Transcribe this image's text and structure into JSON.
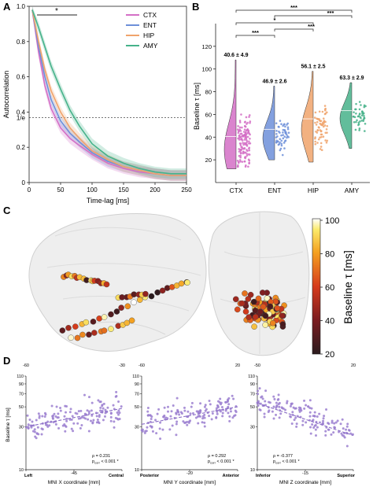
{
  "panels": {
    "A": {
      "letter": "A",
      "sig": "*"
    },
    "B": {
      "letter": "B"
    },
    "C": {
      "letter": "C"
    },
    "D": {
      "letter": "D"
    }
  },
  "colors": {
    "CTX": "#d46fc6",
    "ENT": "#6d8fd9",
    "HIP": "#f0a36b",
    "AMY": "#46b28a",
    "scatter": "#9b7fd0"
  },
  "chart_data": [
    {
      "id": "A",
      "type": "line",
      "xlabel": "Time-lag [ms]",
      "ylabel": "Autocorrelation",
      "xlim": [
        0,
        250
      ],
      "ylim": [
        0,
        1.0
      ],
      "xticks": [
        "0",
        "50",
        "100",
        "150",
        "200",
        "250"
      ],
      "yticks": [
        "0",
        "0.2",
        "0.4",
        "0.6",
        "0.8",
        "1.0"
      ],
      "ytick_extra": "1/e",
      "hline": 0.368,
      "x": [
        5,
        15,
        25,
        35,
        50,
        65,
        80,
        100,
        125,
        150,
        175,
        200,
        225,
        250
      ],
      "series": [
        {
          "name": "CTX",
          "values": [
            0.98,
            0.74,
            0.55,
            0.42,
            0.31,
            0.25,
            0.21,
            0.16,
            0.11,
            0.08,
            0.06,
            0.05,
            0.04,
            0.04
          ]
        },
        {
          "name": "ENT",
          "values": [
            0.98,
            0.77,
            0.6,
            0.47,
            0.35,
            0.28,
            0.23,
            0.17,
            0.12,
            0.09,
            0.07,
            0.05,
            0.04,
            0.04
          ]
        },
        {
          "name": "HIP",
          "values": [
            0.98,
            0.8,
            0.64,
            0.52,
            0.4,
            0.31,
            0.25,
            0.18,
            0.13,
            0.09,
            0.07,
            0.05,
            0.04,
            0.04
          ]
        },
        {
          "name": "AMY",
          "values": [
            0.98,
            0.88,
            0.77,
            0.66,
            0.53,
            0.41,
            0.32,
            0.22,
            0.15,
            0.11,
            0.08,
            0.06,
            0.05,
            0.05
          ]
        }
      ]
    },
    {
      "id": "B",
      "type": "scatter",
      "ylabel": "Baseline τ [ms]",
      "ylim": [
        0,
        140
      ],
      "yticks": [
        "20",
        "40",
        "60",
        "80",
        "100",
        "120"
      ],
      "categories": [
        "CTX",
        "ENT",
        "HIP",
        "AMY"
      ],
      "annotations": [
        "40.6 ± 4.9",
        "46.9 ± 2.6",
        "56.1 ± 2.5",
        "63.3 ± 2.9"
      ],
      "means": [
        40.6,
        46.9,
        56.1,
        63.3
      ],
      "ranges": [
        [
          12,
          108
        ],
        [
          20,
          85
        ],
        [
          18,
          98
        ],
        [
          30,
          88
        ]
      ],
      "counts": [
        140,
        55,
        65,
        45
      ],
      "significance": [
        {
          "pair": [
            "CTX",
            "AMY"
          ],
          "label": "***"
        },
        {
          "pair": [
            "ENT",
            "AMY"
          ],
          "label": "***"
        },
        {
          "pair": [
            "CTX",
            "HIP"
          ],
          "label": "*"
        },
        {
          "pair": [
            "ENT",
            "HIP"
          ],
          "label": "***"
        },
        {
          "pair": [
            "CTX",
            "ENT"
          ],
          "label": "***"
        }
      ]
    },
    {
      "id": "C",
      "type": "scatter",
      "colorbar_label": "Baseline τ [ms]",
      "colorbar_ticks": [
        "100",
        "80",
        "60",
        "40",
        "20"
      ]
    },
    {
      "id": "D1",
      "type": "scatter",
      "xlabel": "MNI X coordinate [mm]",
      "ylabel": "Baseline τ [ms]",
      "xlim": [
        -60,
        -30
      ],
      "ylim": [
        10,
        110
      ],
      "xticks": [
        "-60",
        "-45",
        "-30"
      ],
      "yticks": [
        "10",
        "30",
        "50",
        "70",
        "90",
        "110"
      ],
      "left_label": "Left",
      "right_label": "Central",
      "rho": "ρ = 0.231",
      "pcorr": "p",
      "pcorr_sub": "corr",
      "pcorr_val": " < 0.001 *",
      "fit": [
        [
          -60,
          30
        ],
        [
          -30,
          48
        ]
      ]
    },
    {
      "id": "D2",
      "type": "scatter",
      "xlabel": "MNI Y coordinate [mm]",
      "xlim": [
        -60,
        20
      ],
      "ylim": [
        10,
        110
      ],
      "xticks": [
        "-60",
        "-20",
        "20"
      ],
      "left_label": "Posterior",
      "right_label": "Anterior",
      "rho": "ρ = 0.292",
      "pcorr": "p",
      "pcorr_sub": "corr",
      "pcorr_val": " < 0.001 *",
      "fit": [
        [
          -60,
          32
        ],
        [
          20,
          50
        ]
      ]
    },
    {
      "id": "D3",
      "type": "scatter",
      "xlabel": "MNI Z coordinate [mm]",
      "xlim": [
        -50,
        20
      ],
      "ylim": [
        10,
        110
      ],
      "xticks": [
        "-50",
        "-15",
        "20"
      ],
      "left_label": "Inferior",
      "right_label": "Superior",
      "rho": "ρ = -0.377",
      "pcorr": "p",
      "pcorr_sub": "corr",
      "pcorr_val": " < 0.001 *",
      "fit": [
        [
          -50,
          55
        ],
        [
          20,
          24
        ]
      ]
    }
  ]
}
